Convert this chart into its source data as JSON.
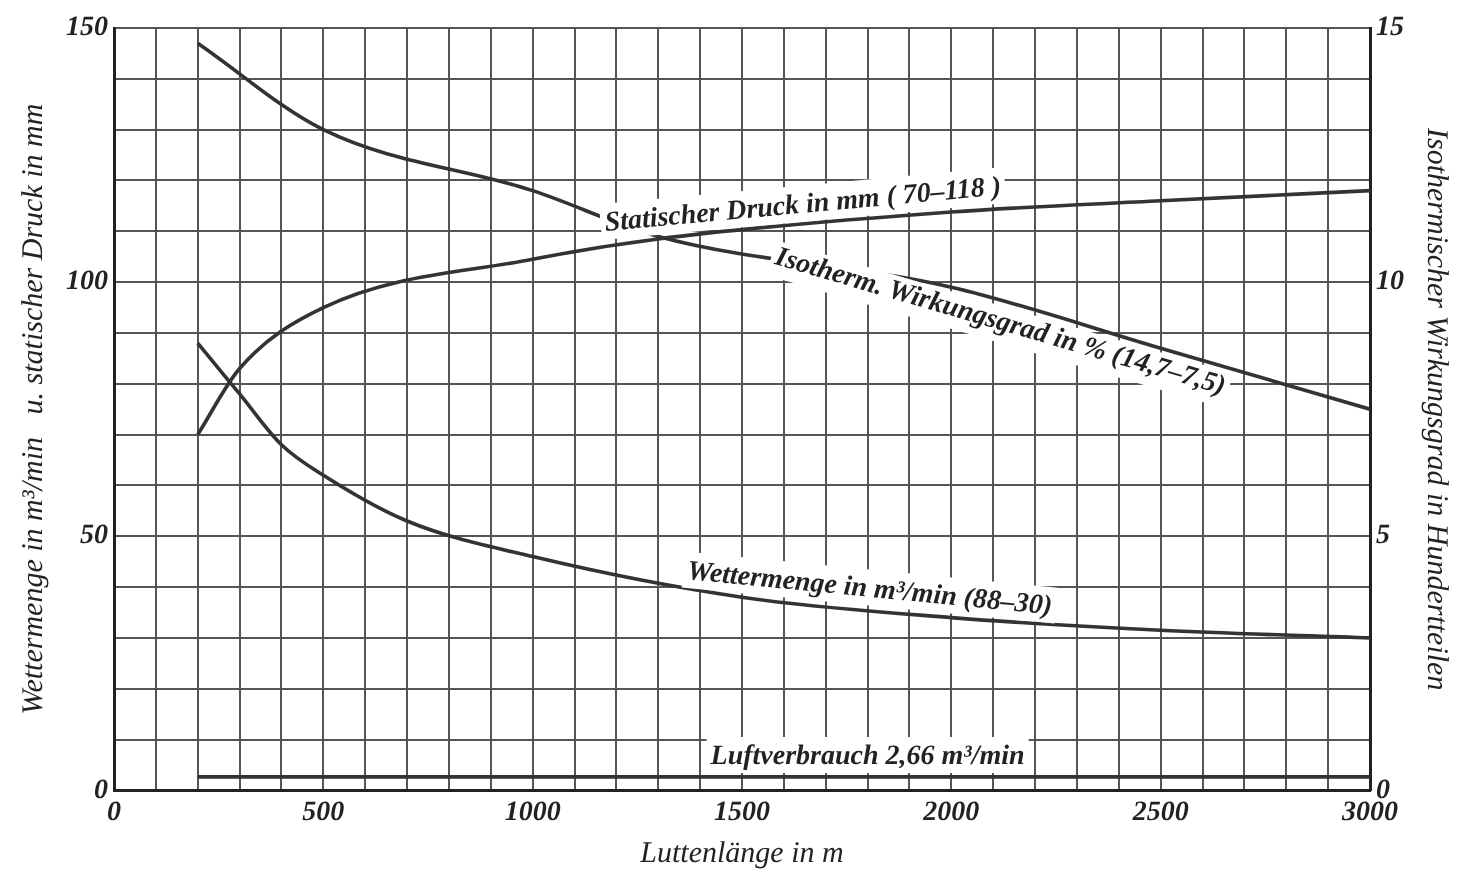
{
  "chart_data": {
    "type": "line",
    "xlabel": "Luttenlänge in m",
    "ylabel": "Wettermenge in m³/min   u. statischer Druck in mm",
    "y2label": "Isothermischer Wirkungsgrad in Hundertteilen",
    "xlim": [
      0,
      3000
    ],
    "ylim": [
      0,
      150
    ],
    "y2lim": [
      0,
      15
    ],
    "xticks": [
      0,
      {
        "value": 100,
        "label": null
      },
      {
        "value": 200,
        "label": null
      },
      {
        "value": 300,
        "label": null
      },
      {
        "value": 400,
        "label": null
      },
      500,
      {
        "value": 600,
        "label": null
      },
      {
        "value": 700,
        "label": null
      },
      {
        "value": 800,
        "label": null
      },
      {
        "value": 900,
        "label": null
      },
      1000,
      {
        "value": 1100,
        "label": null
      },
      {
        "value": 1200,
        "label": null
      },
      {
        "value": 1300,
        "label": null
      },
      {
        "value": 1400,
        "label": null
      },
      1500,
      {
        "value": 1600,
        "label": null
      },
      {
        "value": 1700,
        "label": null
      },
      {
        "value": 1800,
        "label": null
      },
      {
        "value": 1900,
        "label": null
      },
      2000,
      {
        "value": 2100,
        "label": null
      },
      {
        "value": 2200,
        "label": null
      },
      {
        "value": 2300,
        "label": null
      },
      {
        "value": 2400,
        "label": null
      },
      2500,
      {
        "value": 2600,
        "label": null
      },
      {
        "value": 2700,
        "label": null
      },
      {
        "value": 2800,
        "label": null
      },
      {
        "value": 2900,
        "label": null
      },
      3000
    ],
    "yticks": [
      0,
      {
        "value": 10,
        "label": null
      },
      {
        "value": 20,
        "label": null
      },
      {
        "value": 30,
        "label": null
      },
      {
        "value": 40,
        "label": null
      },
      50,
      {
        "value": 60,
        "label": null
      },
      {
        "value": 70,
        "label": null
      },
      {
        "value": 80,
        "label": null
      },
      {
        "value": 90,
        "label": null
      },
      100,
      {
        "value": 110,
        "label": null
      },
      {
        "value": 120,
        "label": null
      },
      {
        "value": 130,
        "label": null
      },
      {
        "value": 140,
        "label": null
      },
      150
    ],
    "y2ticks": [
      0,
      5,
      10,
      15
    ],
    "grid": true,
    "legend": false,
    "marker": "none",
    "line_style": "solid",
    "series": [
      {
        "name": "Statischer Druck in mm ( 70–118 )",
        "color": "#333333",
        "x": [
          200,
          300,
          500,
          1000,
          1300,
          2000,
          2500,
          3000
        ],
        "values": [
          70,
          83,
          95,
          104.5,
          108.5,
          113.8,
          116,
          118
        ]
      },
      {
        "name": "Isotherm. Wirkungsgrad in % (14,7–7,5)",
        "color": "#333333",
        "axis": "y2",
        "x": [
          200,
          500,
          1000,
          1300,
          2000,
          2500,
          3000
        ],
        "values": [
          14.7,
          13,
          11.8,
          10.9,
          9.9,
          8.7,
          7.5
        ]
      },
      {
        "name": "Wettermenge in m³/min (88–30)",
        "color": "#333333",
        "x": [
          200,
          300,
          400,
          500,
          700,
          1000,
          1500,
          2000,
          2500,
          3000
        ],
        "values": [
          88,
          78,
          68,
          62,
          53,
          46,
          38,
          34,
          31.5,
          30
        ]
      },
      {
        "name": "Luftverbrauch 2,66 m³/min",
        "color": "#333333",
        "x": [
          200,
          3000
        ],
        "values": [
          2.66,
          2.66
        ]
      }
    ]
  }
}
